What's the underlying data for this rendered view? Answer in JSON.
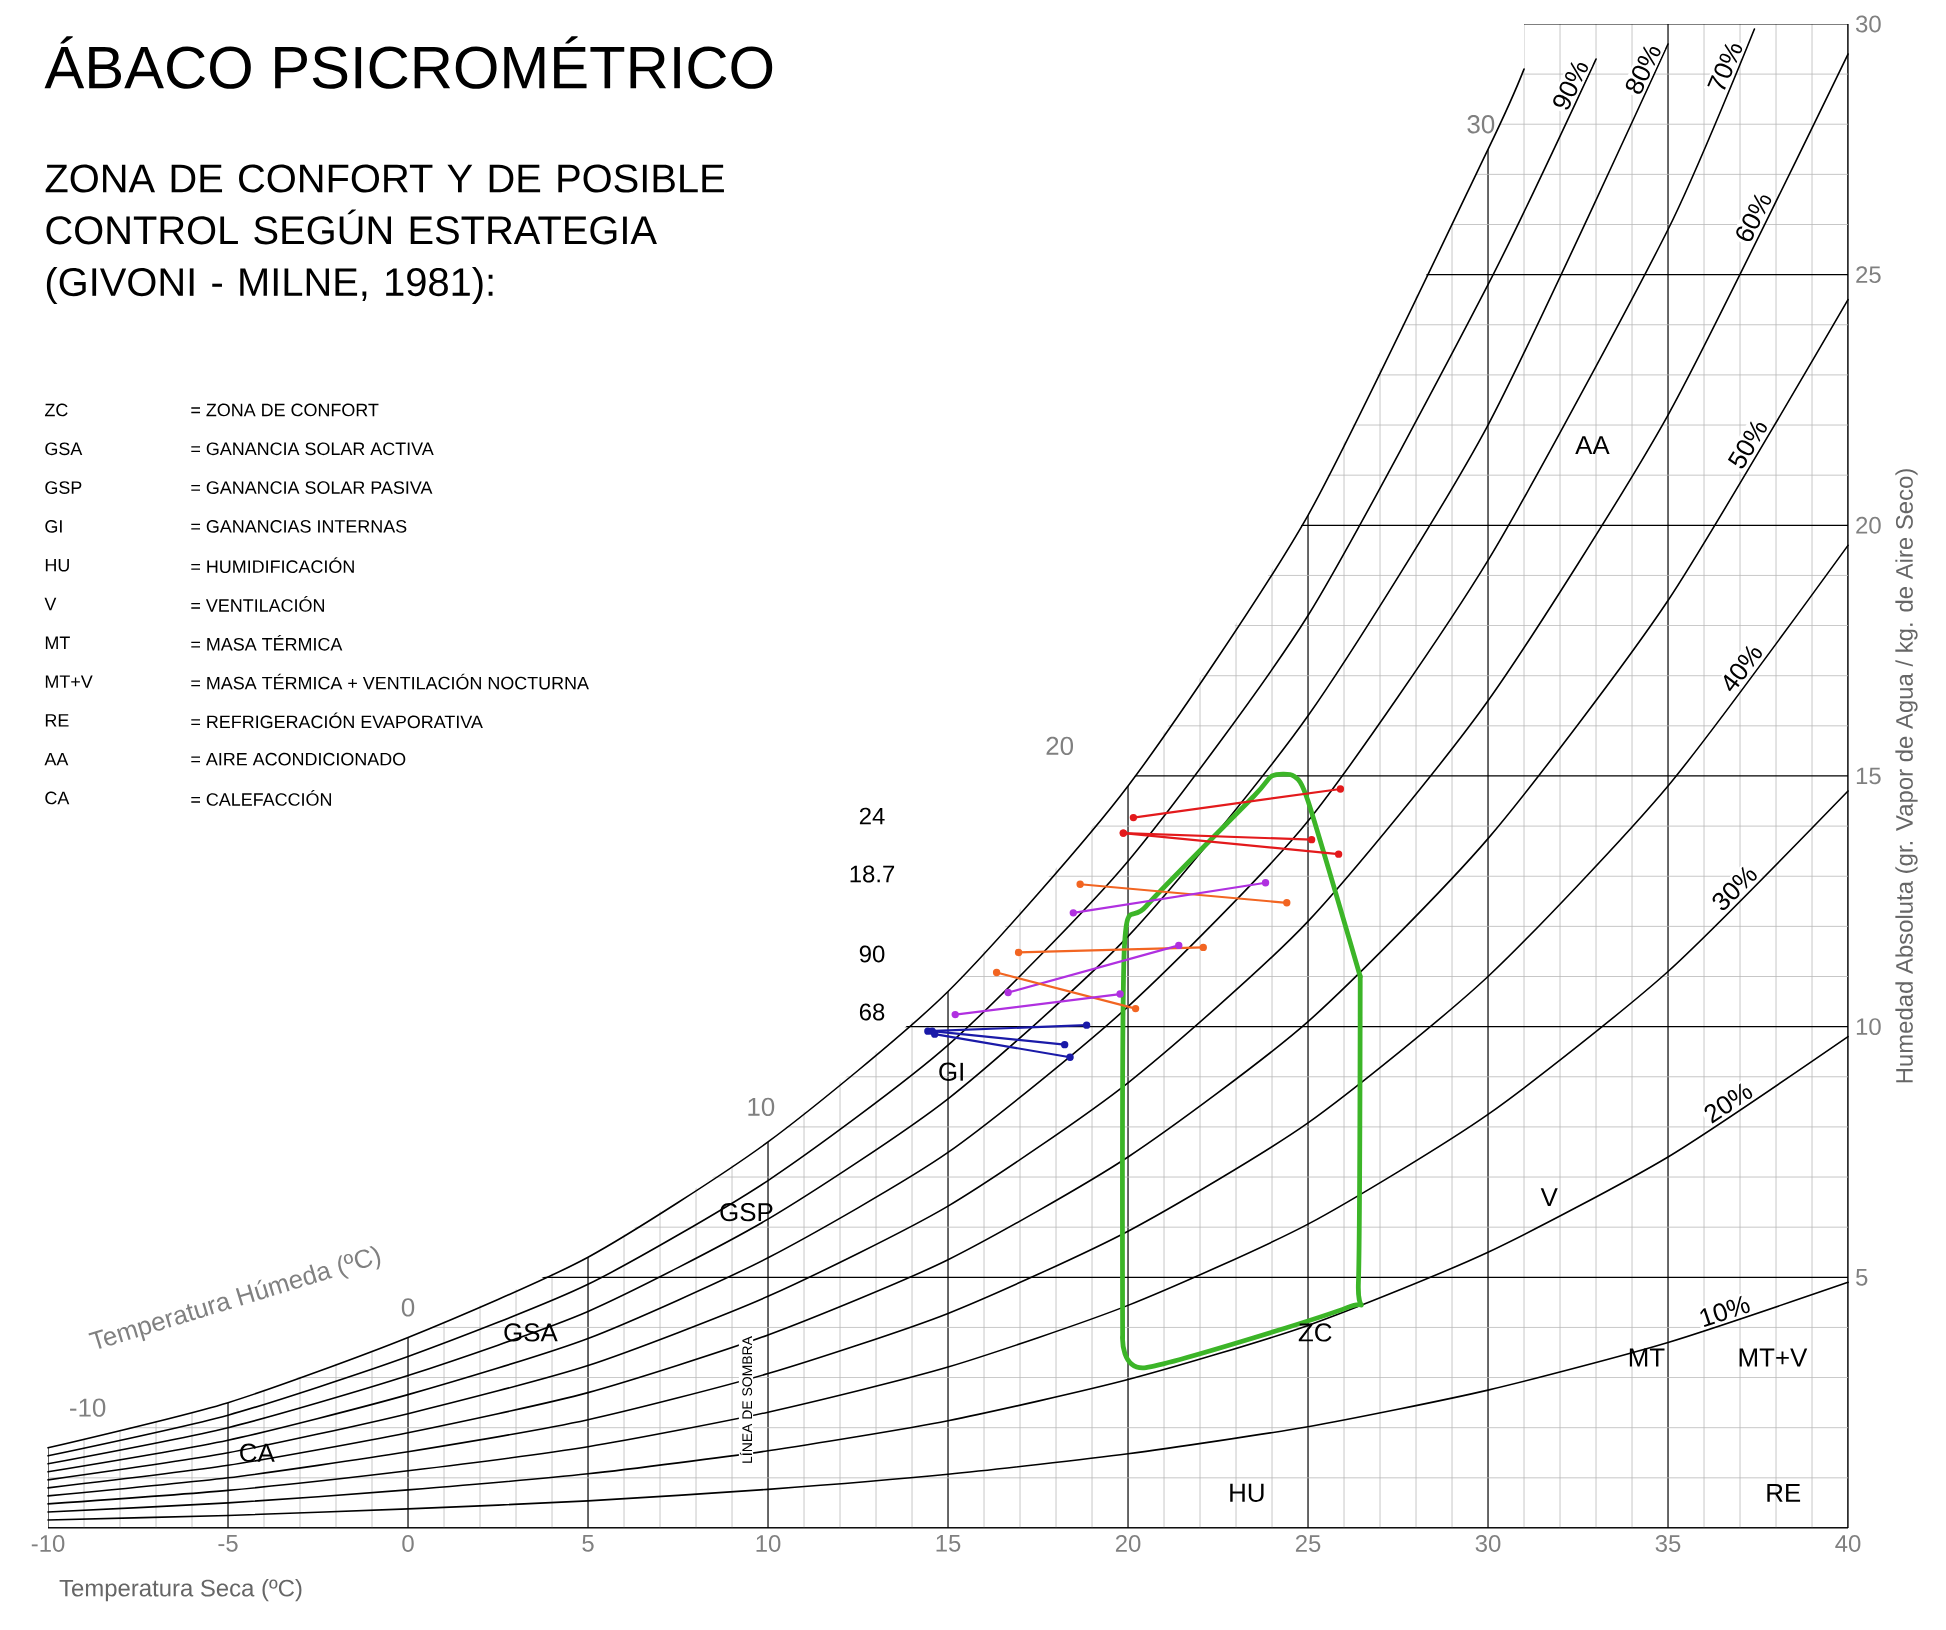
{
  "chart_data": {
    "type": "line",
    "title": "ÁBACO PSICROMÉTRICO",
    "subtitle": "ZONA DE CONFORT Y DE POSIBLE CONTROL SEGÚN ESTRATEGIA (GIVONI - MILNE, 1981):",
    "xlabel": "Temperatura Seca (ºC)",
    "ylabel": "Humedad Absoluta (gr. Vapor de Agua / kg. de Aire Seco)",
    "xlim": [
      -10,
      40
    ],
    "ylim": [
      0,
      30
    ],
    "xticks": [
      -10,
      -5,
      0,
      5,
      10,
      15,
      20,
      25,
      30,
      35,
      40
    ],
    "yticks": [
      5,
      10,
      15,
      20,
      25,
      30
    ],
    "grid": true,
    "series": [
      {
        "name": "10%",
        "color": "#000000",
        "x": [
          -10,
          -5,
          0,
          5,
          10,
          15,
          20,
          25,
          30,
          35,
          40
        ],
        "values": [
          0.16,
          0.25,
          0.38,
          0.54,
          0.77,
          1.07,
          1.48,
          2.02,
          2.75,
          3.7,
          4.9
        ]
      },
      {
        "name": "20%",
        "color": "#000000",
        "x": [
          -10,
          -5,
          0,
          5,
          10,
          15,
          20,
          25,
          30,
          35,
          40
        ],
        "values": [
          0.32,
          0.5,
          0.76,
          1.08,
          1.54,
          2.14,
          2.96,
          4.04,
          5.5,
          7.4,
          9.8
        ]
      },
      {
        "name": "30%",
        "color": "#000000",
        "x": [
          -10,
          -5,
          0,
          5,
          10,
          15,
          20,
          25,
          30,
          35,
          40
        ],
        "values": [
          0.48,
          0.75,
          1.14,
          1.62,
          2.31,
          3.21,
          4.44,
          6.06,
          8.25,
          11.1,
          14.7
        ]
      },
      {
        "name": "40%",
        "color": "#000000",
        "x": [
          -10,
          -5,
          0,
          5,
          10,
          15,
          20,
          25,
          30,
          35,
          40
        ],
        "values": [
          0.64,
          1.0,
          1.52,
          2.16,
          3.08,
          4.28,
          5.92,
          8.08,
          11.0,
          14.8,
          19.6
        ]
      },
      {
        "name": "50%",
        "color": "#000000",
        "x": [
          -10,
          -5,
          0,
          5,
          10,
          15,
          20,
          25,
          30,
          35,
          40
        ],
        "values": [
          0.8,
          1.25,
          1.9,
          2.7,
          3.85,
          5.35,
          7.4,
          10.1,
          13.75,
          18.5,
          24.5
        ]
      },
      {
        "name": "60%",
        "color": "#000000",
        "x": [
          -10,
          -5,
          0,
          5,
          10,
          15,
          20,
          25,
          30,
          35,
          40
        ],
        "values": [
          0.96,
          1.5,
          2.28,
          3.24,
          4.62,
          6.42,
          8.88,
          12.1,
          16.5,
          22.2,
          29.4
        ]
      },
      {
        "name": "70%",
        "color": "#000000",
        "x": [
          -10,
          -5,
          0,
          5,
          10,
          15,
          20,
          25,
          30,
          35,
          37.4
        ],
        "values": [
          1.12,
          1.75,
          2.66,
          3.78,
          5.39,
          7.49,
          10.4,
          14.1,
          19.3,
          25.9,
          29.9
        ]
      },
      {
        "name": "80%",
        "color": "#000000",
        "x": [
          -10,
          -5,
          0,
          5,
          10,
          15,
          20,
          25,
          30,
          35
        ],
        "values": [
          1.28,
          2.0,
          3.04,
          4.32,
          6.16,
          8.56,
          11.8,
          16.2,
          22.0,
          29.6
        ]
      },
      {
        "name": "90%",
        "color": "#000000",
        "x": [
          -10,
          -5,
          0,
          5,
          10,
          15,
          20,
          25,
          30,
          33
        ],
        "values": [
          1.44,
          2.25,
          3.42,
          4.86,
          6.93,
          9.63,
          13.3,
          18.2,
          24.8,
          29.3
        ]
      },
      {
        "color": "#000000",
        "x": [
          -10,
          -5,
          0,
          5,
          10,
          15,
          20,
          25,
          30,
          31
        ],
        "values": [
          1.6,
          2.5,
          3.8,
          5.4,
          7.7,
          10.7,
          14.8,
          20.2,
          27.5,
          29.1
        ]
      },
      {
        "color": "#3cb528",
        "x": [
          19.85,
          19.9,
          20.5,
          23.5,
          24.0,
          24.6,
          25.0,
          26.45
        ],
        "values": [
          3.8,
          11.6,
          12.4,
          14.6,
          15.0,
          15.0,
          14.5,
          11.0
        ]
      },
      {
        "color": "#3cb528",
        "x": [
          19.85,
          20.5,
          26.1,
          26.4,
          26.45
        ],
        "values": [
          3.8,
          3.2,
          4.4,
          4.9,
          11.0
        ]
      },
      {
        "color": "#e31a1c",
        "marker": "circle",
        "x": [
          20.15,
          25.9
        ],
        "values": [
          14.17,
          14.74
        ]
      },
      {
        "color": "#e31a1c",
        "marker": "circle",
        "x": [
          19.87,
          25.1
        ],
        "values": [
          13.86,
          13.73
        ]
      },
      {
        "color": "#e31a1c",
        "marker": "circle",
        "x": [
          19.87,
          25.85
        ],
        "values": [
          13.86,
          13.44
        ]
      },
      {
        "color": "#f26522",
        "marker": "circle",
        "x": [
          18.67,
          24.41
        ],
        "values": [
          12.84,
          12.47
        ]
      },
      {
        "color": "#b030e0",
        "marker": "circle",
        "x": [
          18.48,
          23.82
        ],
        "values": [
          12.27,
          12.87
        ]
      },
      {
        "color": "#f26522",
        "marker": "circle",
        "x": [
          16.96,
          22.09
        ],
        "values": [
          11.48,
          11.58
        ]
      },
      {
        "color": "#b030e0",
        "marker": "circle",
        "x": [
          16.67,
          21.41
        ],
        "values": [
          10.68,
          11.62
        ]
      },
      {
        "color": "#f26522",
        "marker": "circle",
        "x": [
          16.35,
          20.21
        ],
        "values": [
          11.08,
          10.36
        ]
      },
      {
        "color": "#b030e0",
        "marker": "circle",
        "x": [
          15.2,
          19.78
        ],
        "values": [
          10.24,
          10.65
        ]
      },
      {
        "color": "#1a1aa8",
        "marker": "circle",
        "x": [
          14.44,
          18.85
        ],
        "values": [
          9.91,
          10.03
        ]
      },
      {
        "color": "#1a1aa8",
        "marker": "circle",
        "x": [
          14.56,
          18.24
        ],
        "values": [
          9.91,
          9.64
        ]
      },
      {
        "color": "#1a1aa8",
        "marker": "circle",
        "x": [
          14.63,
          18.39
        ],
        "values": [
          9.85,
          9.39
        ]
      }
    ],
    "annotations": [
      "ZC",
      "= ZONA DE CONFORT",
      "GSA",
      "= GANANCIA SOLAR ACTIVA",
      "GSP",
      "= GANANCIA SOLAR PASIVA",
      "GI",
      "= GANANCIAS INTERNAS",
      "HU",
      "= HUMIDIFICACIÓN",
      "V",
      "= VENTILACIÓN",
      "MT",
      "= MASA TÉRMICA",
      "MT+V",
      "= MASA TÉRMICA + VENTILACIÓN NOCTURNA",
      "RE",
      "= REFRIGERACIÓN EVAPORATIVA",
      "AA",
      "= AIRE ACONDICIONADO",
      "CA",
      "= CALEFACCIÓN",
      "24",
      "18.7",
      "90",
      "68",
      "Temperatura Húmeda (ºC)",
      "LÍNEA DE SOMBRA",
      "-10",
      "0",
      "10",
      "20",
      "30",
      "ZC",
      "GSA",
      "GSP",
      "GI",
      "HU",
      "V",
      "MT",
      "MT+V",
      "RE",
      "AA",
      "CA"
    ]
  }
}
